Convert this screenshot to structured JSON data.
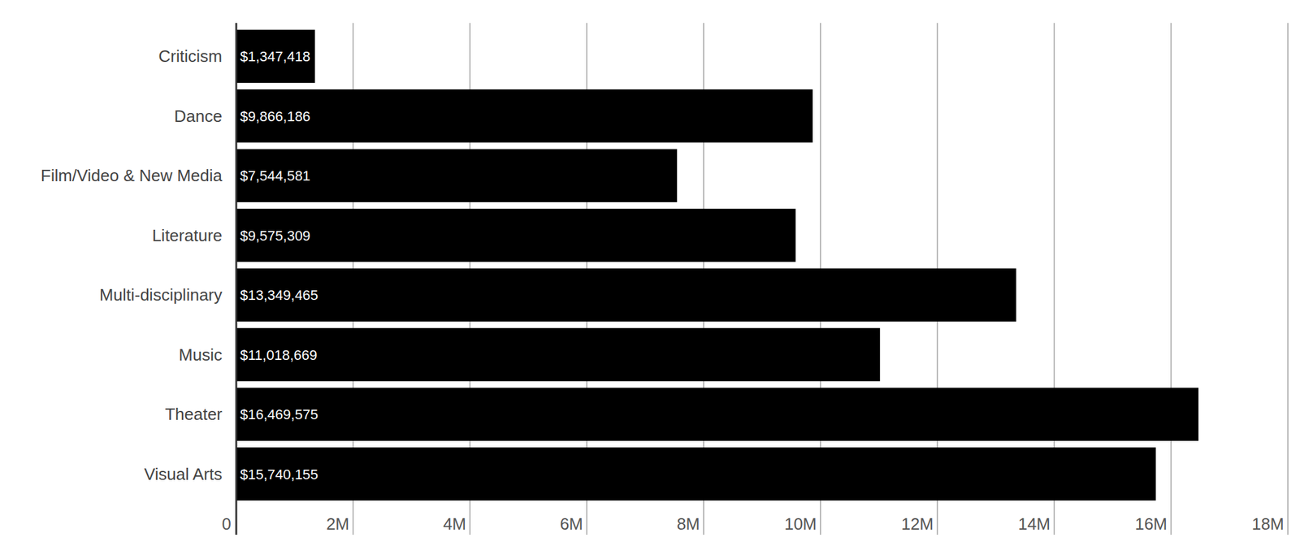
{
  "chart_data": {
    "type": "bar",
    "orientation": "horizontal",
    "categories": [
      "Criticism",
      "Dance",
      "Film/Video & New Media",
      "Literature",
      "Multi-disciplinary",
      "Music",
      "Theater",
      "Visual Arts"
    ],
    "values": [
      1347418,
      9866186,
      7544581,
      9575309,
      13349465,
      11018669,
      16469575,
      15740155
    ],
    "value_labels": [
      "$1,347,418",
      "$9,866,186",
      "$7,544,581",
      "$9,575,309",
      "$13,349,465",
      "$11,018,669",
      "$16,469,575",
      "$15,740,155"
    ],
    "color": "#000000",
    "xlim": [
      0,
      18000000
    ],
    "xticks": [
      0,
      {
        "value": 2000000,
        "label": "2M"
      },
      {
        "value": 4000000,
        "label": "4M"
      },
      {
        "value": 6000000,
        "label": "6M"
      },
      {
        "value": 8000000,
        "label": "8M"
      },
      {
        "value": 10000000,
        "label": "10M"
      },
      {
        "value": 12000000,
        "label": "12M"
      },
      {
        "value": 14000000,
        "label": "14M"
      },
      {
        "value": 16000000,
        "label": "16M"
      },
      {
        "value": 18000000,
        "label": "18M"
      }
    ],
    "grid": true,
    "data_labels": true
  }
}
